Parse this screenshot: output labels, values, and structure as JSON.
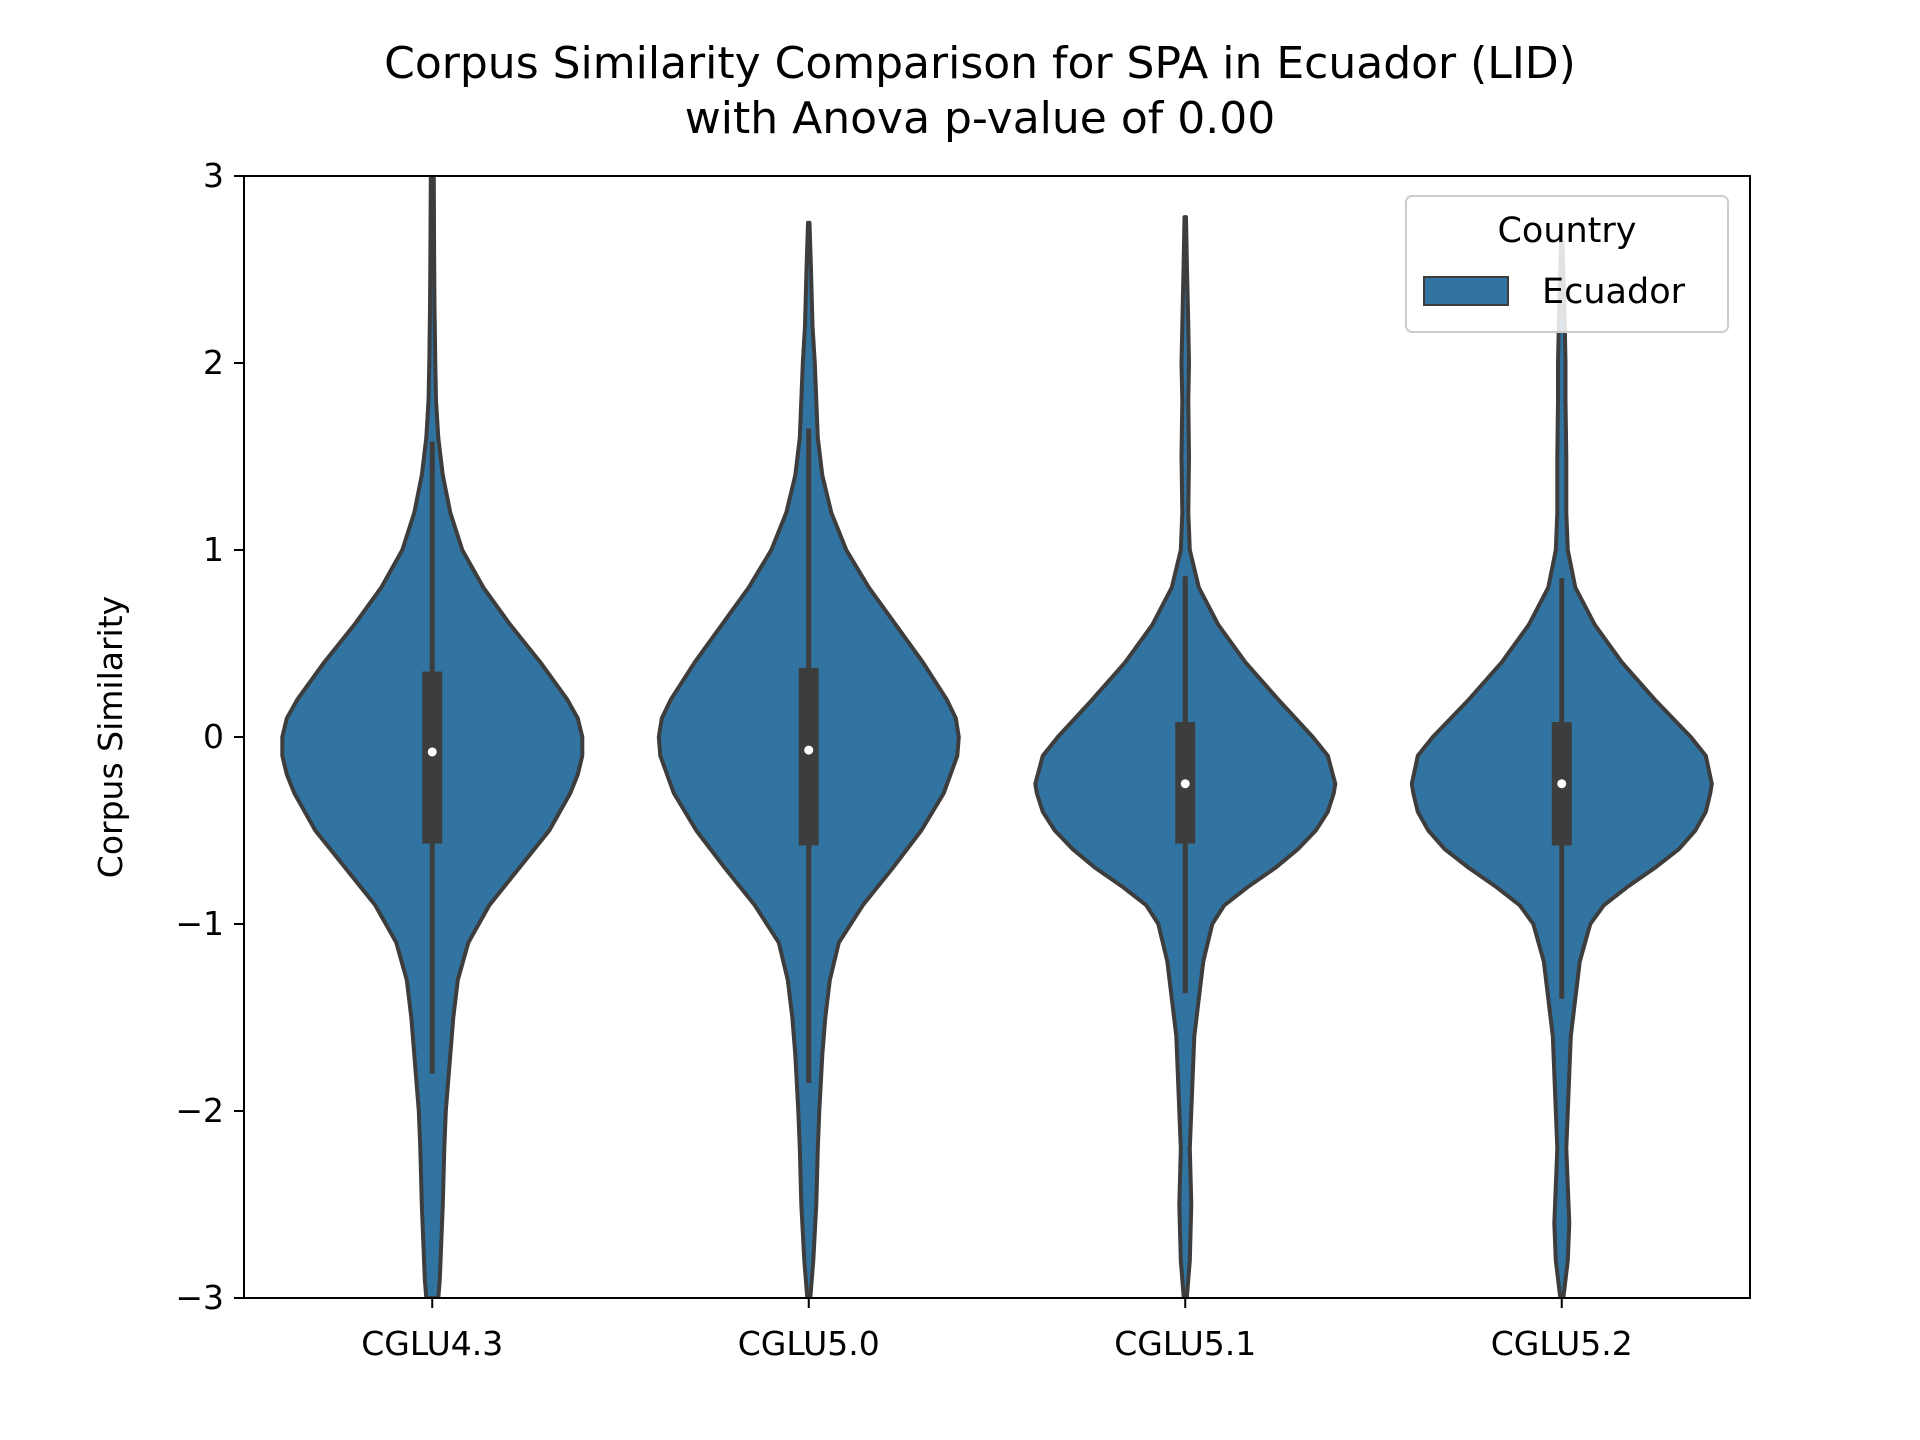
{
  "chart_data": {
    "type": "violin",
    "title": [
      "Corpus Similarity Comparison for SPA in Ecuador (LID)",
      "with Anova p-value of 0.00"
    ],
    "xlabel": "",
    "ylabel": "Corpus Similarity",
    "ylim": [
      -3,
      3
    ],
    "yticks": [
      -3,
      -2,
      -1,
      0,
      1,
      2,
      3
    ],
    "ytick_labels": [
      "−3",
      "−2",
      "−1",
      "0",
      "1",
      "2",
      "3"
    ],
    "categories": [
      "CGLU4.3",
      "CGLU5.0",
      "CGLU5.1",
      "CGLU5.2"
    ],
    "grid": false,
    "legend": {
      "title": "Country",
      "entries": [
        "Ecuador"
      ],
      "placement": "top-right"
    },
    "colors": {
      "fill": "#3274a1",
      "edge": "#3d3d3d",
      "median": "#ffffff",
      "axis": "#000000"
    },
    "series": [
      {
        "name": "Ecuador",
        "violins": [
          {
            "category": "CGLU4.3",
            "median": -0.08,
            "q1": -0.57,
            "q3": 0.35,
            "whisker_low": -1.8,
            "whisker_high": 1.58,
            "density": [
              [
                -3.0,
                0.04
              ],
              [
                -2.9,
                0.05
              ],
              [
                -2.7,
                0.06
              ],
              [
                -2.5,
                0.07
              ],
              [
                -2.2,
                0.08
              ],
              [
                -2.0,
                0.09
              ],
              [
                -1.8,
                0.11
              ],
              [
                -1.5,
                0.14
              ],
              [
                -1.3,
                0.17
              ],
              [
                -1.1,
                0.24
              ],
              [
                -0.9,
                0.38
              ],
              [
                -0.7,
                0.58
              ],
              [
                -0.5,
                0.78
              ],
              [
                -0.3,
                0.92
              ],
              [
                -0.2,
                0.97
              ],
              [
                -0.1,
                1.0
              ],
              [
                0.0,
                1.0
              ],
              [
                0.1,
                0.97
              ],
              [
                0.2,
                0.9
              ],
              [
                0.4,
                0.72
              ],
              [
                0.6,
                0.52
              ],
              [
                0.8,
                0.34
              ],
              [
                1.0,
                0.2
              ],
              [
                1.2,
                0.12
              ],
              [
                1.4,
                0.07
              ],
              [
                1.6,
                0.04
              ],
              [
                1.8,
                0.025
              ],
              [
                2.0,
                0.02
              ],
              [
                2.3,
                0.015
              ],
              [
                2.6,
                0.012
              ],
              [
                3.0,
                0.01
              ]
            ]
          },
          {
            "category": "CGLU5.0",
            "median": -0.07,
            "q1": -0.58,
            "q3": 0.37,
            "whisker_low": -1.85,
            "whisker_high": 1.65,
            "density": [
              [
                -3.0,
                0.01
              ],
              [
                -2.8,
                0.03
              ],
              [
                -2.5,
                0.05
              ],
              [
                -2.2,
                0.06
              ],
              [
                -2.0,
                0.07
              ],
              [
                -1.7,
                0.09
              ],
              [
                -1.5,
                0.11
              ],
              [
                -1.3,
                0.14
              ],
              [
                -1.1,
                0.2
              ],
              [
                -0.9,
                0.36
              ],
              [
                -0.7,
                0.56
              ],
              [
                -0.5,
                0.75
              ],
              [
                -0.3,
                0.9
              ],
              [
                -0.1,
                0.99
              ],
              [
                0.0,
                1.0
              ],
              [
                0.1,
                0.98
              ],
              [
                0.2,
                0.92
              ],
              [
                0.4,
                0.76
              ],
              [
                0.6,
                0.58
              ],
              [
                0.8,
                0.4
              ],
              [
                1.0,
                0.25
              ],
              [
                1.2,
                0.15
              ],
              [
                1.4,
                0.09
              ],
              [
                1.6,
                0.06
              ],
              [
                1.8,
                0.05
              ],
              [
                2.0,
                0.04
              ],
              [
                2.2,
                0.025
              ],
              [
                2.5,
                0.015
              ],
              [
                2.75,
                0.005
              ]
            ]
          },
          {
            "category": "CGLU5.1",
            "median": -0.25,
            "q1": -0.57,
            "q3": 0.08,
            "whisker_low": -1.37,
            "whisker_high": 0.86,
            "density": [
              [
                -3.0,
                0.01
              ],
              [
                -2.8,
                0.03
              ],
              [
                -2.5,
                0.04
              ],
              [
                -2.2,
                0.03
              ],
              [
                -2.0,
                0.04
              ],
              [
                -1.8,
                0.05
              ],
              [
                -1.6,
                0.06
              ],
              [
                -1.4,
                0.09
              ],
              [
                -1.2,
                0.12
              ],
              [
                -1.0,
                0.18
              ],
              [
                -0.9,
                0.26
              ],
              [
                -0.8,
                0.42
              ],
              [
                -0.7,
                0.6
              ],
              [
                -0.6,
                0.75
              ],
              [
                -0.5,
                0.87
              ],
              [
                -0.4,
                0.95
              ],
              [
                -0.3,
                0.99
              ],
              [
                -0.25,
                1.0
              ],
              [
                -0.1,
                0.95
              ],
              [
                0.0,
                0.85
              ],
              [
                0.2,
                0.62
              ],
              [
                0.4,
                0.4
              ],
              [
                0.6,
                0.22
              ],
              [
                0.8,
                0.09
              ],
              [
                1.0,
                0.03
              ],
              [
                1.2,
                0.02
              ],
              [
                1.5,
                0.025
              ],
              [
                1.8,
                0.02
              ],
              [
                2.0,
                0.025
              ],
              [
                2.2,
                0.02
              ],
              [
                2.5,
                0.012
              ],
              [
                2.78,
                0.005
              ]
            ]
          },
          {
            "category": "CGLU5.2",
            "median": -0.25,
            "q1": -0.58,
            "q3": 0.08,
            "whisker_low": -1.4,
            "whisker_high": 0.85,
            "density": [
              [
                -3.0,
                0.01
              ],
              [
                -2.8,
                0.04
              ],
              [
                -2.6,
                0.05
              ],
              [
                -2.4,
                0.04
              ],
              [
                -2.2,
                0.03
              ],
              [
                -2.0,
                0.04
              ],
              [
                -1.8,
                0.05
              ],
              [
                -1.6,
                0.06
              ],
              [
                -1.4,
                0.09
              ],
              [
                -1.2,
                0.12
              ],
              [
                -1.0,
                0.19
              ],
              [
                -0.9,
                0.28
              ],
              [
                -0.8,
                0.44
              ],
              [
                -0.7,
                0.62
              ],
              [
                -0.6,
                0.78
              ],
              [
                -0.5,
                0.89
              ],
              [
                -0.4,
                0.96
              ],
              [
                -0.3,
                0.99
              ],
              [
                -0.25,
                1.0
              ],
              [
                -0.1,
                0.96
              ],
              [
                0.0,
                0.86
              ],
              [
                0.2,
                0.62
              ],
              [
                0.4,
                0.4
              ],
              [
                0.6,
                0.22
              ],
              [
                0.8,
                0.09
              ],
              [
                1.0,
                0.04
              ],
              [
                1.2,
                0.03
              ],
              [
                1.5,
                0.03
              ],
              [
                1.8,
                0.025
              ],
              [
                2.0,
                0.025
              ],
              [
                2.2,
                0.02
              ],
              [
                2.5,
                0.01
              ],
              [
                2.65,
                0.005
              ]
            ]
          }
        ]
      }
    ]
  }
}
